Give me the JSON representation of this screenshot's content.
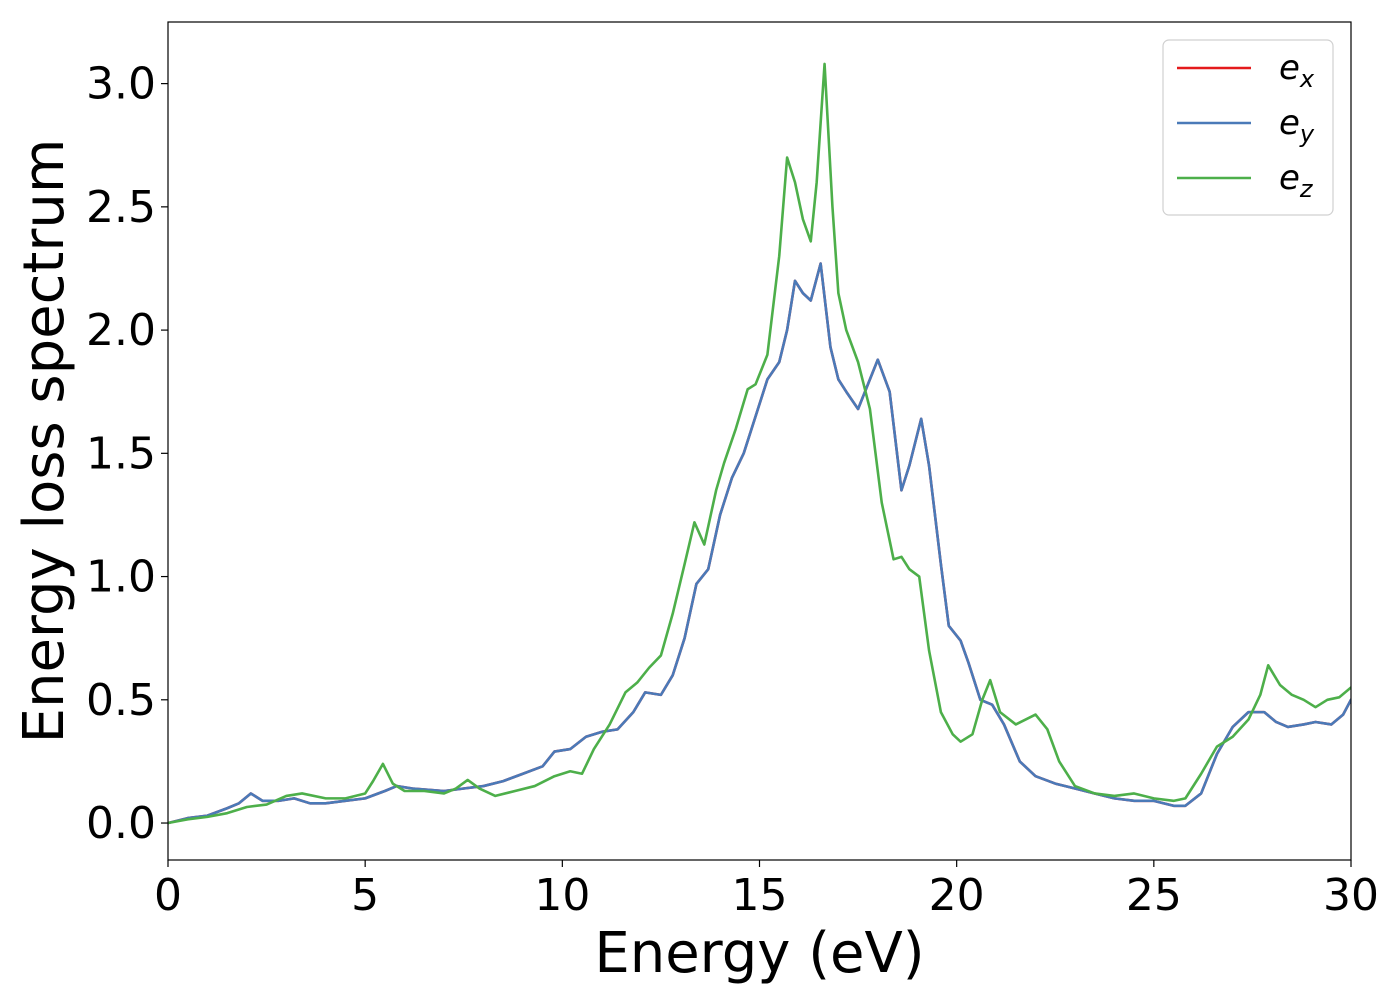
{
  "chart_data": {
    "type": "line",
    "title": "",
    "xlabel": "Energy (eV)",
    "ylabel": "Energy loss spectrum",
    "xlim": [
      0,
      30
    ],
    "ylim": [
      -0.15,
      3.25
    ],
    "xticks": [
      0,
      5,
      10,
      15,
      20,
      25,
      30
    ],
    "xtick_labels": [
      "0",
      "5",
      "10",
      "15",
      "20",
      "25",
      "30"
    ],
    "yticks": [
      0.0,
      0.5,
      1.0,
      1.5,
      2.0,
      2.5,
      3.0
    ],
    "ytick_labels": [
      "0.0",
      "0.5",
      "1.0",
      "1.5",
      "2.0",
      "2.5",
      "3.0"
    ],
    "grid": false,
    "legend_position": "top-right",
    "series": [
      {
        "name": "e_x",
        "legend_base": "e",
        "legend_sub": "x",
        "color": "#e41a1c",
        "x": [
          0,
          0.5,
          1,
          1.5,
          1.8,
          2.1,
          2.4,
          2.8,
          3.2,
          3.6,
          4,
          4.5,
          5,
          5.5,
          5.8,
          6.2,
          7,
          7.5,
          8,
          8.5,
          9,
          9.5,
          9.8,
          10.2,
          10.6,
          11,
          11.4,
          11.8,
          12.1,
          12.5,
          12.8,
          13.1,
          13.4,
          13.7,
          14,
          14.3,
          14.6,
          14.9,
          15.2,
          15.5,
          15.7,
          15.9,
          16.1,
          16.3,
          16.55,
          16.8,
          17,
          17.2,
          17.5,
          17.8,
          18,
          18.3,
          18.6,
          18.8,
          19.1,
          19.3,
          19.6,
          19.8,
          20.1,
          20.3,
          20.6,
          20.9,
          21.2,
          21.6,
          22,
          22.5,
          23,
          23.5,
          24,
          24.5,
          25,
          25.5,
          25.8,
          26.2,
          26.6,
          27,
          27.4,
          27.8,
          28.1,
          28.4,
          28.8,
          29.1,
          29.5,
          29.8,
          30
        ],
        "values": [
          0,
          0.02,
          0.03,
          0.06,
          0.08,
          0.12,
          0.09,
          0.09,
          0.1,
          0.08,
          0.08,
          0.09,
          0.1,
          0.13,
          0.15,
          0.14,
          0.13,
          0.14,
          0.15,
          0.17,
          0.2,
          0.23,
          0.29,
          0.3,
          0.35,
          0.37,
          0.38,
          0.45,
          0.53,
          0.52,
          0.6,
          0.75,
          0.97,
          1.03,
          1.25,
          1.4,
          1.5,
          1.65,
          1.8,
          1.87,
          2.0,
          2.2,
          2.15,
          2.12,
          2.27,
          1.93,
          1.8,
          1.75,
          1.68,
          1.8,
          1.88,
          1.75,
          1.35,
          1.45,
          1.64,
          1.45,
          1.05,
          0.8,
          0.74,
          0.65,
          0.5,
          0.48,
          0.4,
          0.25,
          0.19,
          0.16,
          0.14,
          0.12,
          0.1,
          0.09,
          0.09,
          0.07,
          0.07,
          0.12,
          0.28,
          0.39,
          0.45,
          0.45,
          0.41,
          0.39,
          0.4,
          0.41,
          0.4,
          0.44,
          0.5
        ]
      },
      {
        "name": "e_y",
        "legend_base": "e",
        "legend_sub": "y",
        "color": "#4a7ab8",
        "x": [
          0,
          0.5,
          1,
          1.5,
          1.8,
          2.1,
          2.4,
          2.8,
          3.2,
          3.6,
          4,
          4.5,
          5,
          5.5,
          5.8,
          6.2,
          7,
          7.5,
          8,
          8.5,
          9,
          9.5,
          9.8,
          10.2,
          10.6,
          11,
          11.4,
          11.8,
          12.1,
          12.5,
          12.8,
          13.1,
          13.4,
          13.7,
          14,
          14.3,
          14.6,
          14.9,
          15.2,
          15.5,
          15.7,
          15.9,
          16.1,
          16.3,
          16.55,
          16.8,
          17,
          17.2,
          17.5,
          17.8,
          18,
          18.3,
          18.6,
          18.8,
          19.1,
          19.3,
          19.6,
          19.8,
          20.1,
          20.3,
          20.6,
          20.9,
          21.2,
          21.6,
          22,
          22.5,
          23,
          23.5,
          24,
          24.5,
          25,
          25.5,
          25.8,
          26.2,
          26.6,
          27,
          27.4,
          27.8,
          28.1,
          28.4,
          28.8,
          29.1,
          29.5,
          29.8,
          30
        ],
        "values": [
          0,
          0.02,
          0.03,
          0.06,
          0.08,
          0.12,
          0.09,
          0.09,
          0.1,
          0.08,
          0.08,
          0.09,
          0.1,
          0.13,
          0.15,
          0.14,
          0.13,
          0.14,
          0.15,
          0.17,
          0.2,
          0.23,
          0.29,
          0.3,
          0.35,
          0.37,
          0.38,
          0.45,
          0.53,
          0.52,
          0.6,
          0.75,
          0.97,
          1.03,
          1.25,
          1.4,
          1.5,
          1.65,
          1.8,
          1.87,
          2.0,
          2.2,
          2.15,
          2.12,
          2.27,
          1.93,
          1.8,
          1.75,
          1.68,
          1.8,
          1.88,
          1.75,
          1.35,
          1.45,
          1.64,
          1.45,
          1.05,
          0.8,
          0.74,
          0.65,
          0.5,
          0.48,
          0.4,
          0.25,
          0.19,
          0.16,
          0.14,
          0.12,
          0.1,
          0.09,
          0.09,
          0.07,
          0.07,
          0.12,
          0.28,
          0.39,
          0.45,
          0.45,
          0.41,
          0.39,
          0.4,
          0.41,
          0.4,
          0.44,
          0.5
        ]
      },
      {
        "name": "e_z",
        "legend_base": "e",
        "legend_sub": "z",
        "color": "#4daf4a",
        "x": [
          0,
          0.5,
          1,
          1.5,
          2,
          2.5,
          3,
          3.4,
          4,
          4.5,
          5,
          5.2,
          5.45,
          5.7,
          6,
          6.5,
          7,
          7.3,
          7.6,
          7.9,
          8.3,
          8.8,
          9.3,
          9.8,
          10.2,
          10.5,
          10.8,
          11.2,
          11.6,
          11.9,
          12.2,
          12.5,
          12.8,
          13.1,
          13.35,
          13.6,
          13.9,
          14.1,
          14.4,
          14.7,
          14.9,
          15.2,
          15.5,
          15.7,
          15.9,
          16.1,
          16.3,
          16.45,
          16.65,
          16.85,
          17,
          17.2,
          17.5,
          17.8,
          18.1,
          18.4,
          18.6,
          18.8,
          19.05,
          19.3,
          19.6,
          19.9,
          20.1,
          20.4,
          20.65,
          20.85,
          21.1,
          21.5,
          22,
          22.3,
          22.6,
          23,
          23.5,
          24,
          24.5,
          25,
          25.5,
          25.8,
          26.2,
          26.6,
          27,
          27.4,
          27.7,
          27.9,
          28.2,
          28.5,
          28.8,
          29.1,
          29.4,
          29.7,
          30
        ],
        "values": [
          0,
          0.015,
          0.025,
          0.04,
          0.065,
          0.075,
          0.11,
          0.12,
          0.1,
          0.1,
          0.12,
          0.17,
          0.24,
          0.16,
          0.13,
          0.13,
          0.12,
          0.14,
          0.175,
          0.14,
          0.11,
          0.13,
          0.15,
          0.19,
          0.21,
          0.2,
          0.3,
          0.4,
          0.53,
          0.57,
          0.63,
          0.68,
          0.85,
          1.05,
          1.22,
          1.13,
          1.35,
          1.46,
          1.6,
          1.76,
          1.78,
          1.9,
          2.3,
          2.7,
          2.6,
          2.45,
          2.36,
          2.6,
          3.08,
          2.5,
          2.15,
          2.0,
          1.87,
          1.68,
          1.3,
          1.07,
          1.08,
          1.03,
          1.0,
          0.7,
          0.45,
          0.36,
          0.33,
          0.36,
          0.5,
          0.58,
          0.45,
          0.4,
          0.44,
          0.38,
          0.25,
          0.15,
          0.12,
          0.11,
          0.12,
          0.1,
          0.09,
          0.1,
          0.2,
          0.31,
          0.35,
          0.42,
          0.52,
          0.64,
          0.56,
          0.52,
          0.5,
          0.47,
          0.5,
          0.51,
          0.55
        ]
      }
    ]
  }
}
